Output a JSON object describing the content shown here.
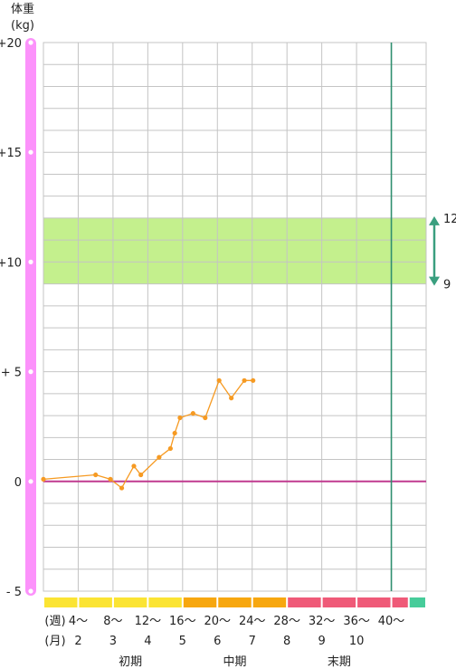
{
  "chart_data": {
    "type": "line",
    "y_axis_title": "体重",
    "y_axis_unit": "(kg)",
    "ylim": [
      -5,
      20
    ],
    "xlim": [
      0,
      44
    ],
    "y_ticks": [
      {
        "value": 20,
        "label": "+20"
      },
      {
        "value": 15,
        "label": "+15"
      },
      {
        "value": 10,
        "label": "+10"
      },
      {
        "value": 5,
        "label": "+ 5"
      },
      {
        "value": 0,
        "label": "0"
      },
      {
        "value": -5,
        "label": "- 5"
      }
    ],
    "week_row_label": "(週)",
    "month_row_label": "(月)",
    "week_labels": [
      {
        "x": 4,
        "label": "4～"
      },
      {
        "x": 8,
        "label": "8～"
      },
      {
        "x": 12,
        "label": "12～"
      },
      {
        "x": 16,
        "label": "16～"
      },
      {
        "x": 20,
        "label": "20～"
      },
      {
        "x": 24,
        "label": "24～"
      },
      {
        "x": 28,
        "label": "28～"
      },
      {
        "x": 32,
        "label": "32～"
      },
      {
        "x": 36,
        "label": "36～"
      },
      {
        "x": 40,
        "label": "40～"
      }
    ],
    "month_labels": [
      {
        "x": 4,
        "label": "2"
      },
      {
        "x": 8,
        "label": "3"
      },
      {
        "x": 12,
        "label": "4"
      },
      {
        "x": 16,
        "label": "5"
      },
      {
        "x": 20,
        "label": "6"
      },
      {
        "x": 24,
        "label": "7"
      },
      {
        "x": 28,
        "label": "8"
      },
      {
        "x": 32,
        "label": "9"
      },
      {
        "x": 36,
        "label": "10"
      }
    ],
    "periods": [
      {
        "label": "初期",
        "start": 0,
        "end": 16,
        "color": "#fbe433",
        "label_x": 10
      },
      {
        "label": "中期",
        "start": 16,
        "end": 28,
        "color": "#f7a70f",
        "label_x": 22
      },
      {
        "label": "末期",
        "start": 28,
        "end": 42,
        "color": "#ef5a78",
        "label_x": 34
      },
      {
        "label": "",
        "start": 42,
        "end": 44,
        "color": "#47cc9a",
        "label_x": null
      }
    ],
    "target_range": {
      "low": 9,
      "high": 12,
      "low_label": "9",
      "high_label": "12",
      "color": "#c4f08d"
    },
    "due_week": 40,
    "series": [
      {
        "color": "#f69a22",
        "x": [
          0,
          6,
          7.7,
          9,
          10.4,
          11.2,
          13.3,
          14.6,
          15.1,
          15.7,
          17.2,
          18.6,
          20.2,
          21.6,
          23.1,
          24.1
        ],
        "values": [
          0.1,
          0.3,
          0.1,
          -0.3,
          0.7,
          0.3,
          1.1,
          1.5,
          2.2,
          2.9,
          3.1,
          2.9,
          4.6,
          3.8,
          4.6,
          4.6
        ]
      }
    ],
    "colors": {
      "y_axis_bar": "#fc92fb",
      "baseline": "#c03a8f",
      "due_line": "#2f8f6f",
      "range_arrow": "#3a9f7f",
      "grid": "#c4c4c4"
    }
  }
}
